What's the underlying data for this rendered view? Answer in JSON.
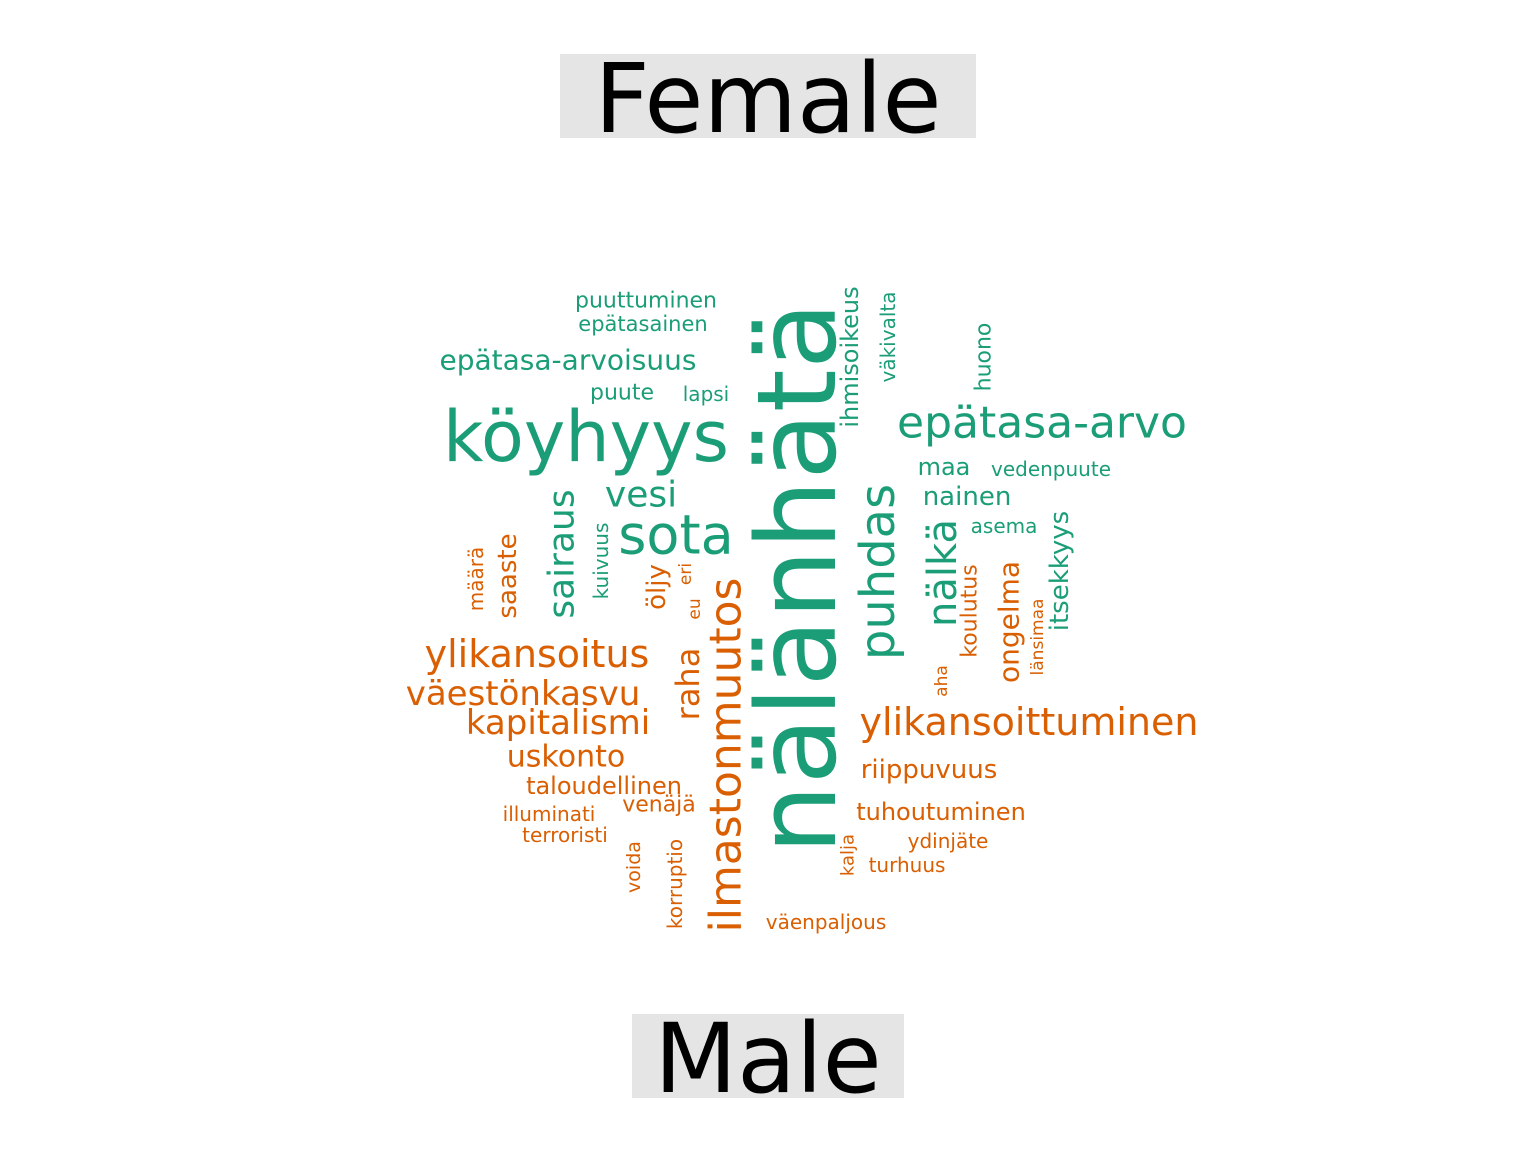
{
  "chart_data": {
    "type": "comparison-wordcloud",
    "groups": [
      {
        "name": "Female",
        "color": "#1b9e77"
      },
      {
        "name": "Male",
        "color": "#d95f02"
      }
    ],
    "words": [
      {
        "text": "nälänhätä",
        "group": "Female",
        "weight": 1.0
      },
      {
        "text": "köyhyys",
        "group": "Female",
        "weight": 0.55
      },
      {
        "text": "epätasa-arvo",
        "group": "Female",
        "weight": 0.4
      },
      {
        "text": "puhdas",
        "group": "Female",
        "weight": 0.45
      },
      {
        "text": "sota",
        "group": "Female",
        "weight": 0.42
      },
      {
        "text": "sairaus",
        "group": "Female",
        "weight": 0.3
      },
      {
        "text": "vesi",
        "group": "Female",
        "weight": 0.28
      },
      {
        "text": "nälkä",
        "group": "Female",
        "weight": 0.32
      },
      {
        "text": "epätasa-arvoisuus",
        "group": "Female",
        "weight": 0.24
      },
      {
        "text": "ihmisoikeus",
        "group": "Female",
        "weight": 0.2
      },
      {
        "text": "itsekkyys",
        "group": "Female",
        "weight": 0.22
      },
      {
        "text": "nainen",
        "group": "Female",
        "weight": 0.2
      },
      {
        "text": "maa",
        "group": "Female",
        "weight": 0.18
      },
      {
        "text": "vedenpuute",
        "group": "Female",
        "weight": 0.15
      },
      {
        "text": "väkivalta",
        "group": "Female",
        "weight": 0.16
      },
      {
        "text": "huono",
        "group": "Female",
        "weight": 0.16
      },
      {
        "text": "puuttuminen",
        "group": "Female",
        "weight": 0.16
      },
      {
        "text": "epätasainen",
        "group": "Female",
        "weight": 0.15
      },
      {
        "text": "puute",
        "group": "Female",
        "weight": 0.16
      },
      {
        "text": "lapsi",
        "group": "Female",
        "weight": 0.14
      },
      {
        "text": "kuivuus",
        "group": "Female",
        "weight": 0.15
      },
      {
        "text": "asema",
        "group": "Female",
        "weight": 0.14
      },
      {
        "text": "ilmastonmuutos",
        "group": "Male",
        "weight": 0.4
      },
      {
        "text": "ylikansoittuminen",
        "group": "Male",
        "weight": 0.3
      },
      {
        "text": "ylikansoitus",
        "group": "Male",
        "weight": 0.3
      },
      {
        "text": "väestönkasvu",
        "group": "Male",
        "weight": 0.28
      },
      {
        "text": "kapitalismi",
        "group": "Male",
        "weight": 0.27
      },
      {
        "text": "raha",
        "group": "Male",
        "weight": 0.27
      },
      {
        "text": "uskonto",
        "group": "Male",
        "weight": 0.25
      },
      {
        "text": "ongelma",
        "group": "Male",
        "weight": 0.23
      },
      {
        "text": "saaste",
        "group": "Male",
        "weight": 0.22
      },
      {
        "text": "öljy",
        "group": "Male",
        "weight": 0.22
      },
      {
        "text": "riippuvuus",
        "group": "Male",
        "weight": 0.21
      },
      {
        "text": "taloudellinen",
        "group": "Male",
        "weight": 0.2
      },
      {
        "text": "tuhoutuminen",
        "group": "Male",
        "weight": 0.2
      },
      {
        "text": "venäjä",
        "group": "Male",
        "weight": 0.18
      },
      {
        "text": "koulutus",
        "group": "Male",
        "weight": 0.18
      },
      {
        "text": "illuminati",
        "group": "Male",
        "weight": 0.15
      },
      {
        "text": "terroristi",
        "group": "Male",
        "weight": 0.15
      },
      {
        "text": "korruptio",
        "group": "Male",
        "weight": 0.15
      },
      {
        "text": "ydinjäte",
        "group": "Male",
        "weight": 0.15
      },
      {
        "text": "turhuus",
        "group": "Male",
        "weight": 0.15
      },
      {
        "text": "väenpaljous",
        "group": "Male",
        "weight": 0.15
      },
      {
        "text": "määrä",
        "group": "Male",
        "weight": 0.15
      },
      {
        "text": "voida",
        "group": "Male",
        "weight": 0.14
      },
      {
        "text": "kalja",
        "group": "Male",
        "weight": 0.14
      },
      {
        "text": "länsimaa",
        "group": "Male",
        "weight": 0.13
      },
      {
        "text": "aha",
        "group": "Male",
        "weight": 0.13
      },
      {
        "text": "eri",
        "group": "Male",
        "weight": 0.13
      },
      {
        "text": "eu",
        "group": "Male",
        "weight": 0.13
      }
    ]
  }
}
